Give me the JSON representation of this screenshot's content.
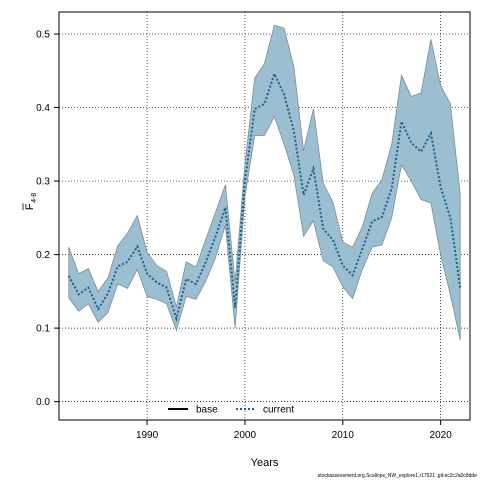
{
  "chart_data": {
    "type": "line",
    "xlabel": "Years",
    "ylabel_main": "F",
    "ylabel_sub": "4-8",
    "xlim": [
      1981,
      2023
    ],
    "ylim": [
      -0.025,
      0.53
    ],
    "x_ticks": [
      {
        "value": 1990,
        "label": "1990"
      },
      {
        "value": 2000,
        "label": "2000"
      },
      {
        "value": 2010,
        "label": "2010"
      },
      {
        "value": 2020,
        "label": "2020"
      }
    ],
    "y_ticks": [
      {
        "value": 0.0,
        "label": "0.0"
      },
      {
        "value": 0.1,
        "label": "0.1"
      },
      {
        "value": 0.2,
        "label": "0.2"
      },
      {
        "value": 0.3,
        "label": "0.3"
      },
      {
        "value": 0.4,
        "label": "0.4"
      },
      {
        "value": 0.5,
        "label": "0.5"
      }
    ],
    "grid": true,
    "legend_placement": "bottom-center",
    "series": [
      {
        "name": "base",
        "style": "solid",
        "color": "#000000",
        "values": []
      },
      {
        "name": "current",
        "style": "dotted",
        "color": "#1f5f8b",
        "band_color": "#9bbfd0",
        "band_edge_color": "#7d8c96",
        "x": [
          1982,
          1983,
          1984,
          1985,
          1986,
          1987,
          1988,
          1989,
          1990,
          1991,
          1992,
          1993,
          1994,
          1995,
          1996,
          1997,
          1998,
          1999,
          2000,
          2001,
          2002,
          2003,
          2004,
          2005,
          2006,
          2007,
          2008,
          2009,
          2010,
          2011,
          2012,
          2013,
          2014,
          2015,
          2016,
          2017,
          2018,
          2019,
          2020,
          2021,
          2022
        ],
        "values": [
          0.171,
          0.146,
          0.155,
          0.126,
          0.147,
          0.184,
          0.19,
          0.211,
          0.174,
          0.162,
          0.155,
          0.113,
          0.167,
          0.16,
          0.19,
          0.225,
          0.264,
          0.128,
          0.3,
          0.398,
          0.405,
          0.446,
          0.418,
          0.368,
          0.281,
          0.317,
          0.235,
          0.22,
          0.185,
          0.172,
          0.208,
          0.245,
          0.251,
          0.29,
          0.381,
          0.352,
          0.34,
          0.365,
          0.292,
          0.25,
          0.155
        ],
        "lower": [
          0.141,
          0.123,
          0.133,
          0.108,
          0.121,
          0.16,
          0.154,
          0.18,
          0.143,
          0.139,
          0.133,
          0.097,
          0.143,
          0.139,
          0.164,
          0.196,
          0.24,
          0.1,
          0.279,
          0.362,
          0.362,
          0.388,
          0.35,
          0.308,
          0.225,
          0.246,
          0.192,
          0.183,
          0.156,
          0.14,
          0.18,
          0.21,
          0.213,
          0.25,
          0.322,
          0.3,
          0.275,
          0.27,
          0.2,
          0.145,
          0.084
        ],
        "upper": [
          0.21,
          0.174,
          0.181,
          0.15,
          0.168,
          0.212,
          0.229,
          0.253,
          0.203,
          0.185,
          0.177,
          0.129,
          0.19,
          0.183,
          0.221,
          0.258,
          0.295,
          0.162,
          0.322,
          0.44,
          0.46,
          0.512,
          0.508,
          0.455,
          0.341,
          0.398,
          0.297,
          0.271,
          0.217,
          0.21,
          0.238,
          0.283,
          0.302,
          0.35,
          0.444,
          0.415,
          0.42,
          0.493,
          0.43,
          0.405,
          0.282
        ]
      }
    ]
  },
  "footer": {
    "text": "stockassessment.org,Scallops_NW_explore1,r17921 ,git:ec2c2a0c8dde"
  }
}
